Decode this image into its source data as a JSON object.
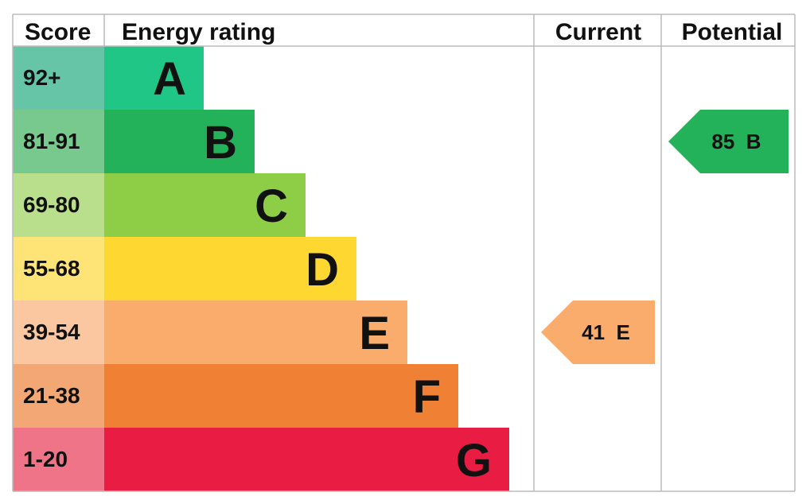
{
  "chart_data": {
    "type": "bar",
    "columns": {
      "score": "Score",
      "rating": "Energy rating",
      "current": "Current",
      "potential": "Potential"
    },
    "bands": [
      {
        "letter": "A",
        "range": "92+",
        "color": "#1fc685",
        "score_color": "#66c5a6"
      },
      {
        "letter": "B",
        "range": "81-91",
        "color": "#23b15a",
        "score_color": "#78c98e"
      },
      {
        "letter": "C",
        "range": "69-80",
        "color": "#8dce46",
        "score_color": "#b9df8c"
      },
      {
        "letter": "D",
        "range": "55-68",
        "color": "#fed831",
        "score_color": "#fee477"
      },
      {
        "letter": "E",
        "range": "39-54",
        "color": "#f9ac6b",
        "score_color": "#fbc7a0"
      },
      {
        "letter": "F",
        "range": "21-38",
        "color": "#ef8034",
        "score_color": "#f2a774"
      },
      {
        "letter": "G",
        "range": "1-20",
        "color": "#e91d43",
        "score_color": "#f07487"
      }
    ],
    "current": {
      "value": 41,
      "band": "E",
      "label": "41  E",
      "color": "#f9ac6b"
    },
    "potential": {
      "value": 85,
      "band": "B",
      "label": "85  B",
      "color": "#23b15a"
    },
    "grid_color": "#bbbbbb"
  }
}
